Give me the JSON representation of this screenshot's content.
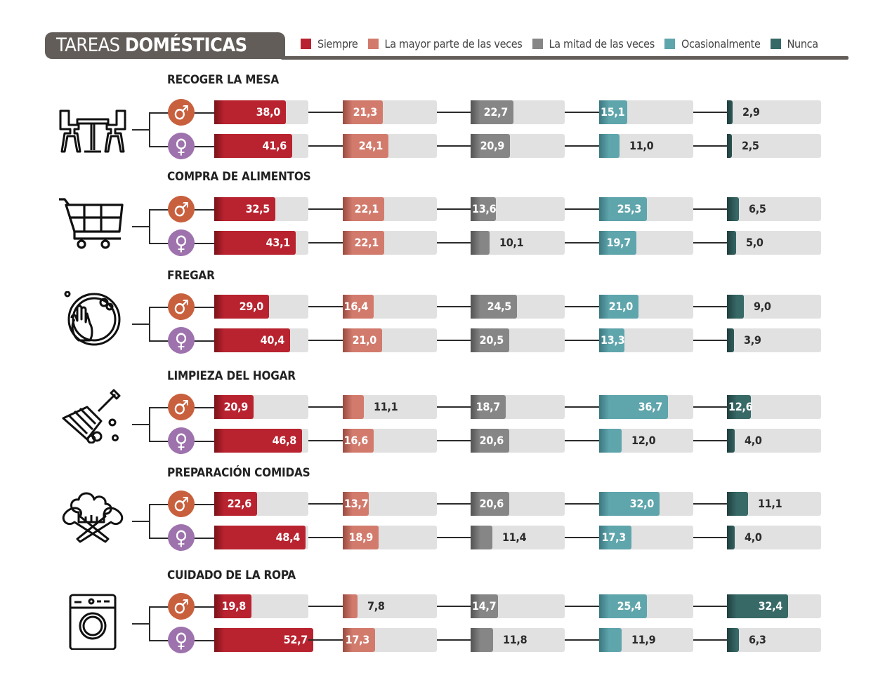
{
  "header": {
    "title_light": "TAREAS ",
    "title_bold": "DOMÉSTICAS"
  },
  "legend": [
    {
      "label": "Siempre",
      "color": "#b8232f"
    },
    {
      "label": "La mayor parte de las veces",
      "color": "#d27b6d"
    },
    {
      "label": "La mitad de las veces",
      "color": "#868686"
    },
    {
      "label": "Ocasionalmente",
      "color": "#5fa5ac"
    },
    {
      "label": "Nunca",
      "color": "#376967"
    }
  ],
  "genders": {
    "male": {
      "symbol": "♂",
      "color": "#c8603e"
    },
    "female": {
      "symbol": "♀",
      "color": "#9e72ad"
    }
  },
  "chart_data": {
    "type": "bar",
    "title": "TAREAS DOMÉSTICAS",
    "unit": "%",
    "categories": [
      "Siempre",
      "La mayor parte de las veces",
      "La mitad de las veces",
      "Ocasionalmente",
      "Nunca"
    ],
    "tasks": [
      {
        "name": "RECOGER LA MESA",
        "icon": "dining-table-icon",
        "male": {
          "values": [
            38.0,
            21.3,
            22.7,
            15.1,
            2.9
          ],
          "labels": [
            "38,0",
            "21,3",
            "22,7",
            "15,1",
            "2,9"
          ]
        },
        "female": {
          "values": [
            41.6,
            24.1,
            20.9,
            11.0,
            2.5
          ],
          "labels": [
            "41,6",
            "24,1",
            "20,9",
            "11,0",
            "2,5"
          ]
        }
      },
      {
        "name": "COMPRA DE ALIMENTOS",
        "icon": "shopping-cart-icon",
        "male": {
          "values": [
            32.5,
            22.1,
            13.6,
            25.3,
            6.5
          ],
          "labels": [
            "32,5",
            "22,1",
            "13,6",
            "25,3",
            "6,5"
          ]
        },
        "female": {
          "values": [
            43.1,
            22.1,
            10.1,
            19.7,
            5.0
          ],
          "labels": [
            "43,1",
            "22,1",
            "10,1",
            "19,7",
            "5,0"
          ]
        }
      },
      {
        "name": "FREGAR",
        "icon": "dish-washing-icon",
        "male": {
          "values": [
            29.0,
            16.4,
            24.5,
            21.0,
            9.0
          ],
          "labels": [
            "29,0",
            "16,4",
            "24,5",
            "21,0",
            "9,0"
          ]
        },
        "female": {
          "values": [
            40.4,
            21.0,
            20.5,
            13.3,
            3.9
          ],
          "labels": [
            "40,4",
            "21,0",
            "20,5",
            "13,3",
            "3,9"
          ]
        }
      },
      {
        "name": "LIMPIEZA DEL HOGAR",
        "icon": "broom-icon",
        "male": {
          "values": [
            20.9,
            11.1,
            18.7,
            36.7,
            12.6
          ],
          "labels": [
            "20,9",
            "11,1",
            "18,7",
            "36,7",
            "12,6"
          ]
        },
        "female": {
          "values": [
            46.8,
            16.6,
            20.6,
            12.0,
            4.0
          ],
          "labels": [
            "46,8",
            "16,6",
            "20,6",
            "12,0",
            "4,0"
          ]
        }
      },
      {
        "name": "PREPARACIÓN COMIDAS",
        "icon": "chef-hat-icon",
        "male": {
          "values": [
            22.6,
            13.7,
            20.6,
            32.0,
            11.1
          ],
          "labels": [
            "22,6",
            "13,7",
            "20,6",
            "32,0",
            "11,1"
          ]
        },
        "female": {
          "values": [
            48.4,
            18.9,
            11.4,
            17.3,
            4.0
          ],
          "labels": [
            "48,4",
            "18,9",
            "11,4",
            "17,3",
            "4,0"
          ]
        }
      },
      {
        "name": "CUIDADO DE LA ROPA",
        "icon": "washing-machine-icon",
        "male": {
          "values": [
            19.8,
            7.8,
            14.7,
            25.4,
            32.4
          ],
          "labels": [
            "19,8",
            "7,8",
            "14,7",
            "25,4",
            "32,4"
          ]
        },
        "female": {
          "values": [
            52.7,
            17.3,
            11.8,
            11.9,
            6.3
          ],
          "labels": [
            "52,7",
            "17,3",
            "11,8",
            "11,9",
            "6,3"
          ]
        }
      }
    ],
    "xlim": [
      0,
      50
    ]
  }
}
